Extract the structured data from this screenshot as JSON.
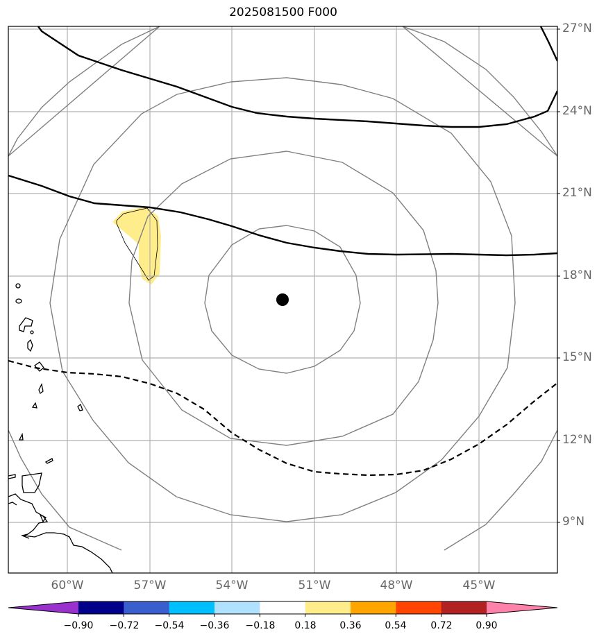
{
  "title": "2025081500 F000",
  "lat_labels": [
    "27°N",
    "24°N",
    "21°N",
    "18°N",
    "15°N",
    "12°N",
    "9°N"
  ],
  "lon_labels": [
    "60°W",
    "57°W",
    "54°W",
    "51°W",
    "48°W",
    "45°W"
  ],
  "colorbar": {
    "tick_labels": [
      "−0.90",
      "−0.72",
      "−0.54",
      "−0.36",
      "−0.18",
      "0.18",
      "0.36",
      "0.54",
      "0.72",
      "0.90"
    ],
    "colors": [
      "#9932cc",
      "#00008b",
      "#3a5fcd",
      "#00bfff",
      "#b0e2ff",
      "#ffffff",
      "#ffec8b",
      "#ffa500",
      "#ff4500",
      "#b22222",
      "#ff82ab"
    ]
  },
  "map": {
    "center_marker": "storm-center",
    "region": "Atlantic / Lesser Antilles",
    "shaded_value_color": "#ffec8b"
  }
}
